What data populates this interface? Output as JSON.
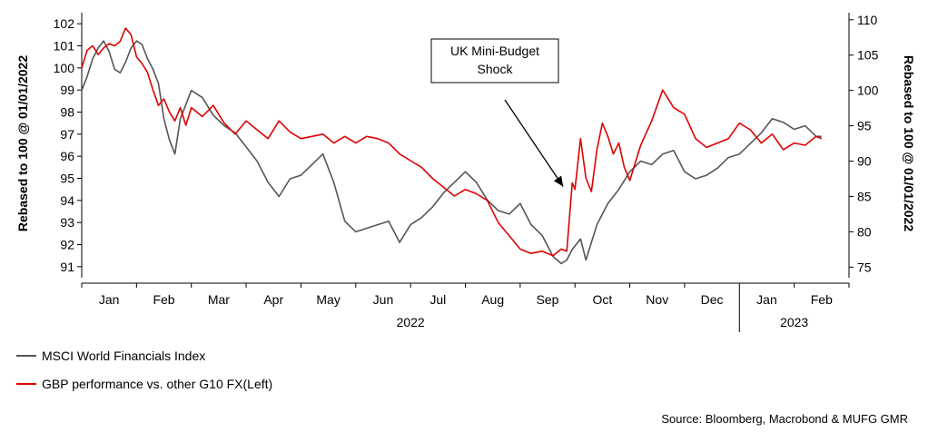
{
  "colors": {
    "series_msci": "#555555",
    "series_gbp": "#e00000",
    "axis": "#000000"
  },
  "legend": {
    "msci": "MSCI World Financials Index",
    "gbp": "GBP performance vs. other G10 FX(Left)"
  },
  "source": "Source: Bloomberg, Macrobond & MUFG GMR",
  "chart_data": {
    "type": "line",
    "x_tick_labels": [
      "Jan",
      "Feb",
      "Mar",
      "Apr",
      "May",
      "Jun",
      "Jul",
      "Aug",
      "Sep",
      "Oct",
      "Nov",
      "Dec",
      "Jan",
      "Feb"
    ],
    "year_labels": [
      "2022",
      "2023"
    ],
    "ylabel_left": "Rebased to 100 @ 01/01/2022",
    "ylabel_right": "Rebased to 100 @ 01/01/2022",
    "ylim_left": [
      90.5,
      102.5
    ],
    "ylim_right": [
      73.5,
      111
    ],
    "yticks_left": [
      91,
      92,
      93,
      94,
      95,
      96,
      97,
      98,
      99,
      100,
      101,
      102
    ],
    "yticks_right": [
      75,
      80,
      85,
      90,
      95,
      100,
      105,
      110
    ],
    "annotation": {
      "text": "UK Mini-Budget Shock",
      "target_month": 8.85,
      "target_value_left": 94.3
    },
    "series": [
      {
        "name": "GBP performance vs. other G10 FX(Left)",
        "axis": "left",
        "x": [
          0,
          0.1,
          0.2,
          0.3,
          0.4,
          0.5,
          0.6,
          0.7,
          0.8,
          0.9,
          1.0,
          1.1,
          1.2,
          1.3,
          1.4,
          1.5,
          1.6,
          1.7,
          1.8,
          1.9,
          2.0,
          2.2,
          2.4,
          2.6,
          2.8,
          3.0,
          3.2,
          3.4,
          3.6,
          3.8,
          4.0,
          4.2,
          4.4,
          4.6,
          4.8,
          5.0,
          5.2,
          5.4,
          5.6,
          5.8,
          6.0,
          6.2,
          6.4,
          6.6,
          6.8,
          7.0,
          7.2,
          7.4,
          7.6,
          7.8,
          8.0,
          8.2,
          8.4,
          8.6,
          8.75,
          8.85,
          8.95,
          9.0,
          9.1,
          9.2,
          9.3,
          9.4,
          9.5,
          9.6,
          9.7,
          9.8,
          9.9,
          10.0,
          10.2,
          10.4,
          10.6,
          10.8,
          11.0,
          11.2,
          11.4,
          11.6,
          11.8,
          12.0,
          12.2,
          12.4,
          12.6,
          12.8,
          13.0,
          13.2,
          13.4,
          13.5
        ],
        "values": [
          100.0,
          100.8,
          101.0,
          100.6,
          100.9,
          101.1,
          101.0,
          101.2,
          101.8,
          101.5,
          100.5,
          100.2,
          99.8,
          99.0,
          98.3,
          98.6,
          98.0,
          97.6,
          98.2,
          97.4,
          98.2,
          97.8,
          98.3,
          97.5,
          97.0,
          97.6,
          97.2,
          96.8,
          97.6,
          97.1,
          96.8,
          96.9,
          97.0,
          96.6,
          96.9,
          96.6,
          96.9,
          96.8,
          96.6,
          96.1,
          95.8,
          95.5,
          95.0,
          94.6,
          94.2,
          94.5,
          94.3,
          94.0,
          93.0,
          92.4,
          91.8,
          91.6,
          91.7,
          91.5,
          91.8,
          91.7,
          94.8,
          94.5,
          96.8,
          95.0,
          94.4,
          96.3,
          97.5,
          96.9,
          96.1,
          96.6,
          95.5,
          94.9,
          96.5,
          97.6,
          99.0,
          98.2,
          97.9,
          96.8,
          96.4,
          96.6,
          96.8,
          97.5,
          97.2,
          96.6,
          97.0,
          96.3,
          96.6,
          96.5,
          96.9,
          96.8
        ]
      },
      {
        "name": "MSCI World Financials Index",
        "axis": "right",
        "x": [
          0,
          0.1,
          0.2,
          0.3,
          0.4,
          0.5,
          0.6,
          0.7,
          0.8,
          0.9,
          1.0,
          1.1,
          1.2,
          1.3,
          1.4,
          1.5,
          1.6,
          1.7,
          1.8,
          1.9,
          2.0,
          2.2,
          2.4,
          2.6,
          2.8,
          3.0,
          3.2,
          3.4,
          3.6,
          3.8,
          4.0,
          4.2,
          4.4,
          4.6,
          4.8,
          5.0,
          5.2,
          5.4,
          5.6,
          5.8,
          6.0,
          6.2,
          6.4,
          6.6,
          6.8,
          7.0,
          7.2,
          7.4,
          7.6,
          7.8,
          8.0,
          8.2,
          8.4,
          8.6,
          8.75,
          8.85,
          8.95,
          9.1,
          9.2,
          9.3,
          9.4,
          9.6,
          9.8,
          10.0,
          10.2,
          10.4,
          10.6,
          10.8,
          11.0,
          11.2,
          11.4,
          11.6,
          11.8,
          12.0,
          12.2,
          12.4,
          12.6,
          12.8,
          13.0,
          13.2,
          13.4,
          13.5
        ],
        "values": [
          100.0,
          102.0,
          104.5,
          106.0,
          107.0,
          105.5,
          103.0,
          102.5,
          104.0,
          106.0,
          107.0,
          106.5,
          104.5,
          103.0,
          101.0,
          96.0,
          93.0,
          91.0,
          96.0,
          98.0,
          100.0,
          99.0,
          96.5,
          95.0,
          94.0,
          92.0,
          90.0,
          87.0,
          85.0,
          87.5,
          88.0,
          89.5,
          91.0,
          87.0,
          81.5,
          80.0,
          80.5,
          81.0,
          81.5,
          78.5,
          81.0,
          82.0,
          83.5,
          85.5,
          87.0,
          88.5,
          87.0,
          84.5,
          83.0,
          82.5,
          84.0,
          81.0,
          79.5,
          76.5,
          75.5,
          76.0,
          77.5,
          79.0,
          76.0,
          78.5,
          81.0,
          84.0,
          86.0,
          88.5,
          90.0,
          89.5,
          91.0,
          91.5,
          88.5,
          87.5,
          88.0,
          89.0,
          90.5,
          91.0,
          92.5,
          94.0,
          96.0,
          95.5,
          94.5,
          95.0,
          93.5,
          93.5
        ]
      }
    ]
  }
}
